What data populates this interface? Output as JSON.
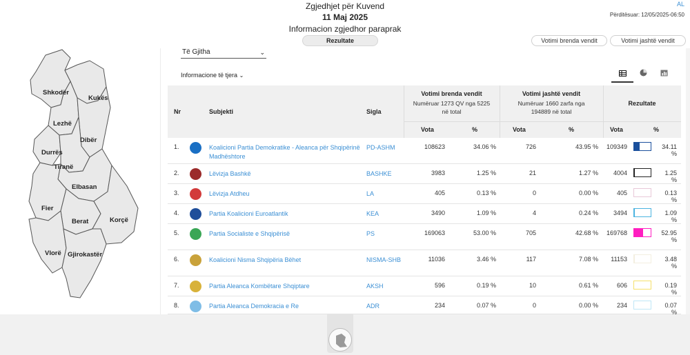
{
  "header": {
    "title": "Zgjedhjet për Kuvend",
    "date": "11 Maj 2025",
    "subtitle": "Informacion zgjedhor paraprak",
    "lang": "AL",
    "updated": "Përditësuar: 12/05/2025-06:50",
    "results_button": "Rezultate",
    "vote_in_button": "Votimi brenda vendit",
    "vote_out_button": "Votimi jashtë vendit"
  },
  "map": {
    "regions": [
      "Shkodër",
      "Kukës",
      "Lezhë",
      "Dibër",
      "Durrës",
      "Tiranë",
      "Elbasan",
      "Fier",
      "Berat",
      "Korçë",
      "Vlorë",
      "Gjirokastër"
    ]
  },
  "filter": {
    "selected": "Të Gjitha",
    "more_info": "Informacione të tjera"
  },
  "views": {
    "table": "table-icon",
    "pie": "pie-chart-icon",
    "bar": "bar-chart-icon"
  },
  "table": {
    "headers": {
      "nr": "Nr",
      "subject": "Subjekti",
      "sigla": "Sigla",
      "in_title": "Votimi brenda vendit",
      "in_sub1": "Numëruar 1273 QV nga 5225",
      "in_sub2": "në total",
      "out_title": "Votimi jashtë vendit",
      "out_sub1": "Numëruar 1660 zarfa nga",
      "out_sub2": "194889 në total",
      "results": "Rezultate",
      "votes": "Vota",
      "pct": "%"
    },
    "rows": [
      {
        "nr": "1.",
        "subject": "Koalicioni Partia Demokratike - Aleanca për Shqipërinë Madhështore",
        "sigla": "PD-ASHM",
        "v1": "108623",
        "p1": "34.06 %",
        "v2": "726",
        "p2": "43.95 %",
        "v3": "109349",
        "p3": "34.11 %",
        "color": "#1a4f9c",
        "fill": 0.3411,
        "logo": "#1a6fc4"
      },
      {
        "nr": "2.",
        "subject": "Lëvizja Bashkë",
        "sigla": "BASHKE",
        "v1": "3983",
        "p1": "1.25 %",
        "v2": "21",
        "p2": "1.27 %",
        "v3": "4004",
        "p3": "1.25 %",
        "color": "#222222",
        "fill": 0.0125,
        "logo": "#9b2b2b"
      },
      {
        "nr": "3.",
        "subject": "Lëvizja Atdheu",
        "sigla": "LA",
        "v1": "405",
        "p1": "0.13 %",
        "v2": "0",
        "p2": "0.00 %",
        "v3": "405",
        "p3": "0.13 %",
        "color": "#e8c8d8",
        "fill": 0.0013,
        "logo": "#d23b3b"
      },
      {
        "nr": "4.",
        "subject": "Partia Koalicioni Euroatlantik",
        "sigla": "KEA",
        "v1": "3490",
        "p1": "1.09 %",
        "v2": "4",
        "p2": "0.24 %",
        "v3": "3494",
        "p3": "1.09 %",
        "color": "#4ab3e0",
        "fill": 0.0109,
        "logo": "#1f4e9a"
      },
      {
        "nr": "5.",
        "subject": "Partia Socialiste e Shqipërisë",
        "sigla": "PS",
        "v1": "169063",
        "p1": "53.00 %",
        "v2": "705",
        "p2": "42.68 %",
        "v3": "169768",
        "p3": "52.95 %",
        "color": "#ff1ec0",
        "fill": 0.5295,
        "logo": "#3aa655"
      },
      {
        "nr": "6.",
        "subject": "Koalicioni Nisma Shqipëria Bëhet",
        "sigla": "NISMA-SHB",
        "v1": "11036",
        "p1": "3.46 %",
        "v2": "117",
        "p2": "7.08 %",
        "v3": "11153",
        "p3": "3.48 %",
        "color": "#f3efe0",
        "fill": 0.0348,
        "logo": "#c9a23a"
      },
      {
        "nr": "7.",
        "subject": "Partia Aleanca Kombëtare Shqiptare",
        "sigla": "AKSH",
        "v1": "596",
        "p1": "0.19 %",
        "v2": "10",
        "p2": "0.61 %",
        "v3": "606",
        "p3": "0.19 %",
        "color": "#f5e06a",
        "fill": 0.0019,
        "logo": "#d8b23a"
      },
      {
        "nr": "8.",
        "subject": "Partia Aleanca Demokracia e Re",
        "sigla": "ADR",
        "v1": "234",
        "p1": "0.07 %",
        "v2": "0",
        "p2": "0.00 %",
        "v3": "234",
        "p3": "0.07 %",
        "color": "#bfe6f6",
        "fill": 0.0007,
        "logo": "#7fbde6"
      }
    ]
  }
}
